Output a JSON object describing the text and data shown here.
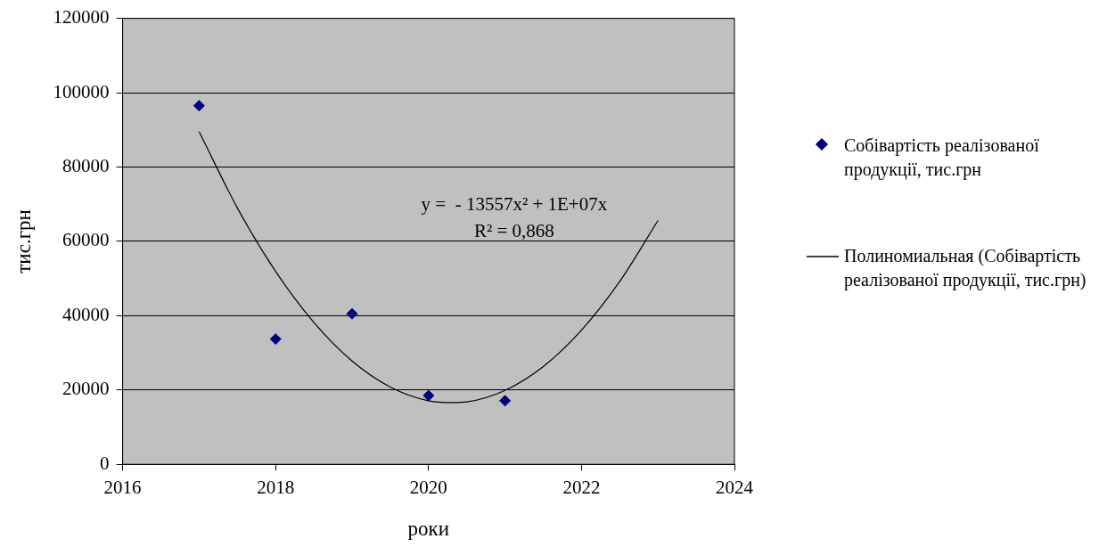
{
  "chart_data": {
    "type": "scatter",
    "xlabel": "роки",
    "ylabel": "тис.грн",
    "series": [
      {
        "name": "Собівартість реалізованої продукції, тис.грн",
        "type": "scatter",
        "color": "#000080",
        "marker": "diamond",
        "x": [
          2017,
          2018,
          2019,
          2020,
          2021
        ],
        "values": [
          96500,
          33700,
          40500,
          18500,
          17100
        ]
      },
      {
        "name": "Полиномиальная (Собівартість реалізованої продукції, тис.грн)",
        "type": "line",
        "color": "#000000",
        "marker": "none",
        "line_style": "solid",
        "x": [
          2017,
          2017.5,
          2018,
          2018.5,
          2019,
          2019.5,
          2020,
          2020.3,
          2020.5,
          2021,
          2021.5,
          2022,
          2022.5,
          2023
        ],
        "values": [
          89500,
          69000,
          51900,
          38200,
          27800,
          20800,
          17100,
          16600,
          16800,
          19900,
          26300,
          36100,
          49200,
          65600
        ]
      }
    ],
    "annotations": [
      "y =  - 13557x² + 1E+07x",
      "R² = 0,868"
    ],
    "xlim": [
      2016,
      2024
    ],
    "xticks": [
      2016,
      2018,
      2020,
      2022,
      2024
    ],
    "ylim": [
      0,
      120000
    ],
    "yticks": [
      0,
      20000,
      40000,
      60000,
      80000,
      100000,
      120000
    ],
    "grid": "y",
    "legend": "right"
  }
}
